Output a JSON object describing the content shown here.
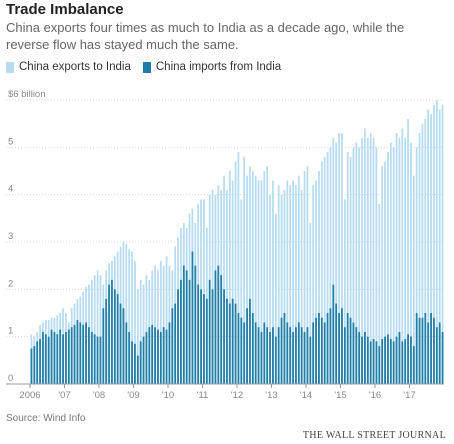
{
  "title": "Trade Imbalance",
  "subtitle": "China exports four times as much to India as a decade ago, while the reverse flow has stayed much the same.",
  "source": "Source: Wind Info",
  "brand": "THE WALL STREET JOURNAL",
  "colors": {
    "exports": "#b7dcef",
    "imports": "#1f7ea8",
    "grid": "#d8d8d8",
    "axis": "#999999"
  },
  "chart_data": {
    "type": "bar",
    "x_tick_labels": [
      "2006",
      "'07",
      "'08",
      "'09",
      "'10",
      "'11",
      "'12",
      "'13",
      "'14",
      "'15",
      "'16",
      "'17"
    ],
    "y_tick_labels": [
      "$6 billion",
      "5",
      "4",
      "3",
      "2",
      "1",
      "0"
    ],
    "y_ticks": [
      6,
      5,
      4,
      3,
      2,
      1,
      0
    ],
    "ylim": [
      0,
      6
    ],
    "frequency": "monthly",
    "start": "2006-01",
    "series": [
      {
        "name": "China exports to India",
        "values": [
          1.05,
          1.0,
          1.1,
          1.25,
          1.3,
          1.35,
          1.35,
          1.4,
          1.4,
          1.45,
          1.5,
          1.6,
          1.5,
          1.3,
          1.6,
          1.7,
          1.8,
          1.85,
          1.95,
          2.05,
          2.1,
          2.2,
          2.3,
          2.4,
          2.3,
          2.1,
          2.4,
          2.55,
          2.6,
          2.7,
          2.8,
          2.9,
          3.0,
          2.95,
          2.85,
          2.8,
          2.6,
          2.0,
          2.2,
          2.1,
          2.3,
          2.2,
          2.4,
          2.5,
          2.4,
          2.6,
          2.5,
          2.7,
          2.5,
          2.4,
          2.9,
          3.1,
          3.3,
          3.4,
          3.3,
          3.6,
          3.7,
          3.4,
          3.8,
          3.9,
          3.9,
          3.3,
          4.0,
          4.1,
          4.0,
          4.2,
          4.1,
          4.4,
          4.1,
          4.5,
          4.3,
          4.7,
          4.9,
          3.9,
          4.8,
          4.4,
          4.6,
          4.5,
          4.4,
          4.3,
          4.3,
          4.5,
          4.6,
          4.0,
          4.3,
          3.6,
          4.2,
          4.0,
          4.1,
          4.3,
          4.2,
          4.3,
          4.2,
          4.4,
          4.1,
          4.5,
          4.6,
          3.4,
          4.2,
          4.3,
          4.5,
          4.7,
          4.8,
          4.9,
          5.0,
          5.2,
          5.1,
          5.3,
          5.3,
          3.9,
          4.9,
          4.8,
          5.0,
          5.1,
          5.0,
          5.2,
          5.4,
          5.2,
          5.3,
          5.2,
          5.0,
          3.8,
          4.6,
          4.7,
          4.9,
          5.1,
          5.0,
          5.3,
          5.2,
          5.4,
          5.2,
          5.6,
          5.1,
          4.4,
          5.0,
          5.3,
          5.5,
          5.6,
          5.8,
          5.7,
          5.9,
          6.0,
          5.8,
          5.9
        ]
      },
      {
        "name": "China imports from India",
        "values": [
          0.75,
          0.8,
          0.9,
          0.95,
          1.1,
          1.05,
          1.0,
          1.15,
          1.1,
          1.05,
          1.15,
          1.05,
          1.1,
          1.15,
          1.2,
          1.25,
          1.35,
          1.3,
          1.25,
          1.3,
          1.2,
          1.1,
          1.05,
          1.0,
          1.0,
          1.6,
          1.8,
          2.1,
          2.2,
          2.0,
          1.9,
          1.7,
          1.6,
          1.3,
          1.1,
          0.9,
          0.85,
          0.6,
          0.9,
          1.0,
          1.1,
          1.2,
          1.25,
          1.2,
          1.15,
          1.1,
          1.2,
          1.15,
          1.3,
          1.6,
          1.7,
          2.0,
          2.2,
          2.5,
          2.4,
          2.2,
          2.8,
          2.5,
          2.1,
          2.0,
          1.9,
          1.8,
          2.2,
          2.0,
          2.4,
          2.5,
          2.3,
          2.0,
          1.8,
          1.7,
          1.8,
          1.7,
          1.5,
          1.4,
          1.3,
          1.6,
          1.8,
          1.5,
          1.3,
          1.2,
          1.1,
          1.3,
          1.2,
          1.1,
          1.2,
          1.0,
          1.2,
          1.4,
          1.5,
          1.3,
          1.2,
          1.1,
          1.2,
          1.3,
          1.2,
          1.1,
          1.2,
          1.0,
          1.3,
          1.4,
          1.5,
          1.4,
          1.3,
          1.5,
          1.6,
          2.1,
          1.7,
          1.5,
          1.6,
          1.2,
          1.5,
          1.4,
          1.3,
          1.2,
          1.1,
          1.0,
          1.1,
          1.0,
          0.9,
          0.95,
          0.9,
          0.8,
          0.95,
          1.0,
          1.05,
          0.95,
          0.9,
          1.0,
          1.1,
          0.9,
          0.95,
          1.05,
          1.0,
          0.8,
          1.5,
          1.4,
          1.4,
          1.5,
          1.3,
          1.5,
          1.4,
          1.2,
          1.3,
          1.1
        ]
      }
    ]
  }
}
